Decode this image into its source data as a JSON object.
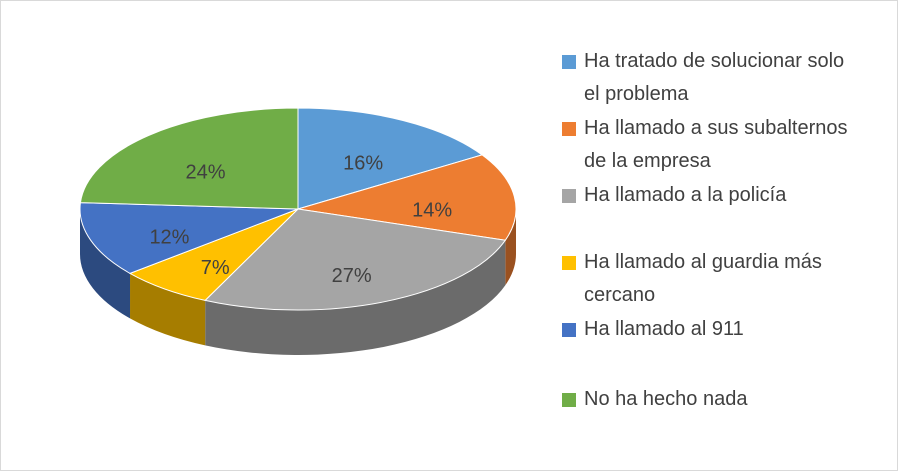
{
  "chart_data": {
    "type": "pie3d",
    "categories": [
      "Ha tratado de solucionar solo el problema",
      "Ha llamado a sus subalternos de la empresa",
      "Ha llamado a la policía",
      "Ha llamado al guardia más cercano",
      "Ha llamado al 911",
      "No ha hecho nada"
    ],
    "values": [
      16,
      14,
      27,
      7,
      12,
      24
    ],
    "value_labels": [
      "16%",
      "14%",
      "27%",
      "7%",
      "12%",
      "24%"
    ],
    "colors": [
      "#5b9bd5",
      "#ed7d31",
      "#a5a5a5",
      "#ffc000",
      "#4472c4",
      "#70ad47"
    ],
    "legend": "right"
  }
}
